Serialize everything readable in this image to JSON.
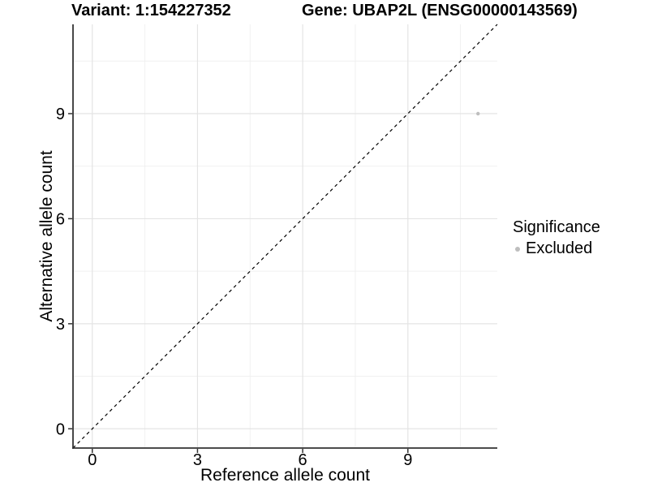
{
  "chart_data": {
    "type": "scatter",
    "title_left": "Variant: 1:154227352",
    "title_right": "Gene: UBAP2L (ENSG00000143569)",
    "xlabel": "Reference allele count",
    "ylabel": "Alternative allele count",
    "xlim": [
      -0.55,
      11.55
    ],
    "ylim": [
      -0.55,
      11.55
    ],
    "x_ticks": [
      0,
      3,
      6,
      9
    ],
    "y_ticks": [
      0,
      3,
      6,
      9
    ],
    "x_minor_gridlines": [
      1.5,
      4.5,
      7.5,
      10.5
    ],
    "y_minor_gridlines": [
      1.5,
      4.5,
      7.5,
      10.5
    ],
    "grid": "major and minor, light grey on white panel",
    "reference_line": {
      "slope": 1,
      "intercept": 0,
      "style": "dashed",
      "color": "#000000"
    },
    "series": [
      {
        "name": "Excluded",
        "color": "#bebebe",
        "points": [
          {
            "x": 11,
            "y": 9
          }
        ]
      }
    ],
    "legend": {
      "position": "right",
      "title": "Significance",
      "entries": [
        {
          "label": "Excluded",
          "color": "#bebebe"
        }
      ]
    }
  },
  "style": {
    "grid_major_color": "#e4e4e4",
    "grid_minor_color": "#f0f0f0",
    "axis_line_color": "#333333",
    "tick_color": "#333333",
    "text_color": "#000000",
    "point_color": "#bebebe"
  }
}
